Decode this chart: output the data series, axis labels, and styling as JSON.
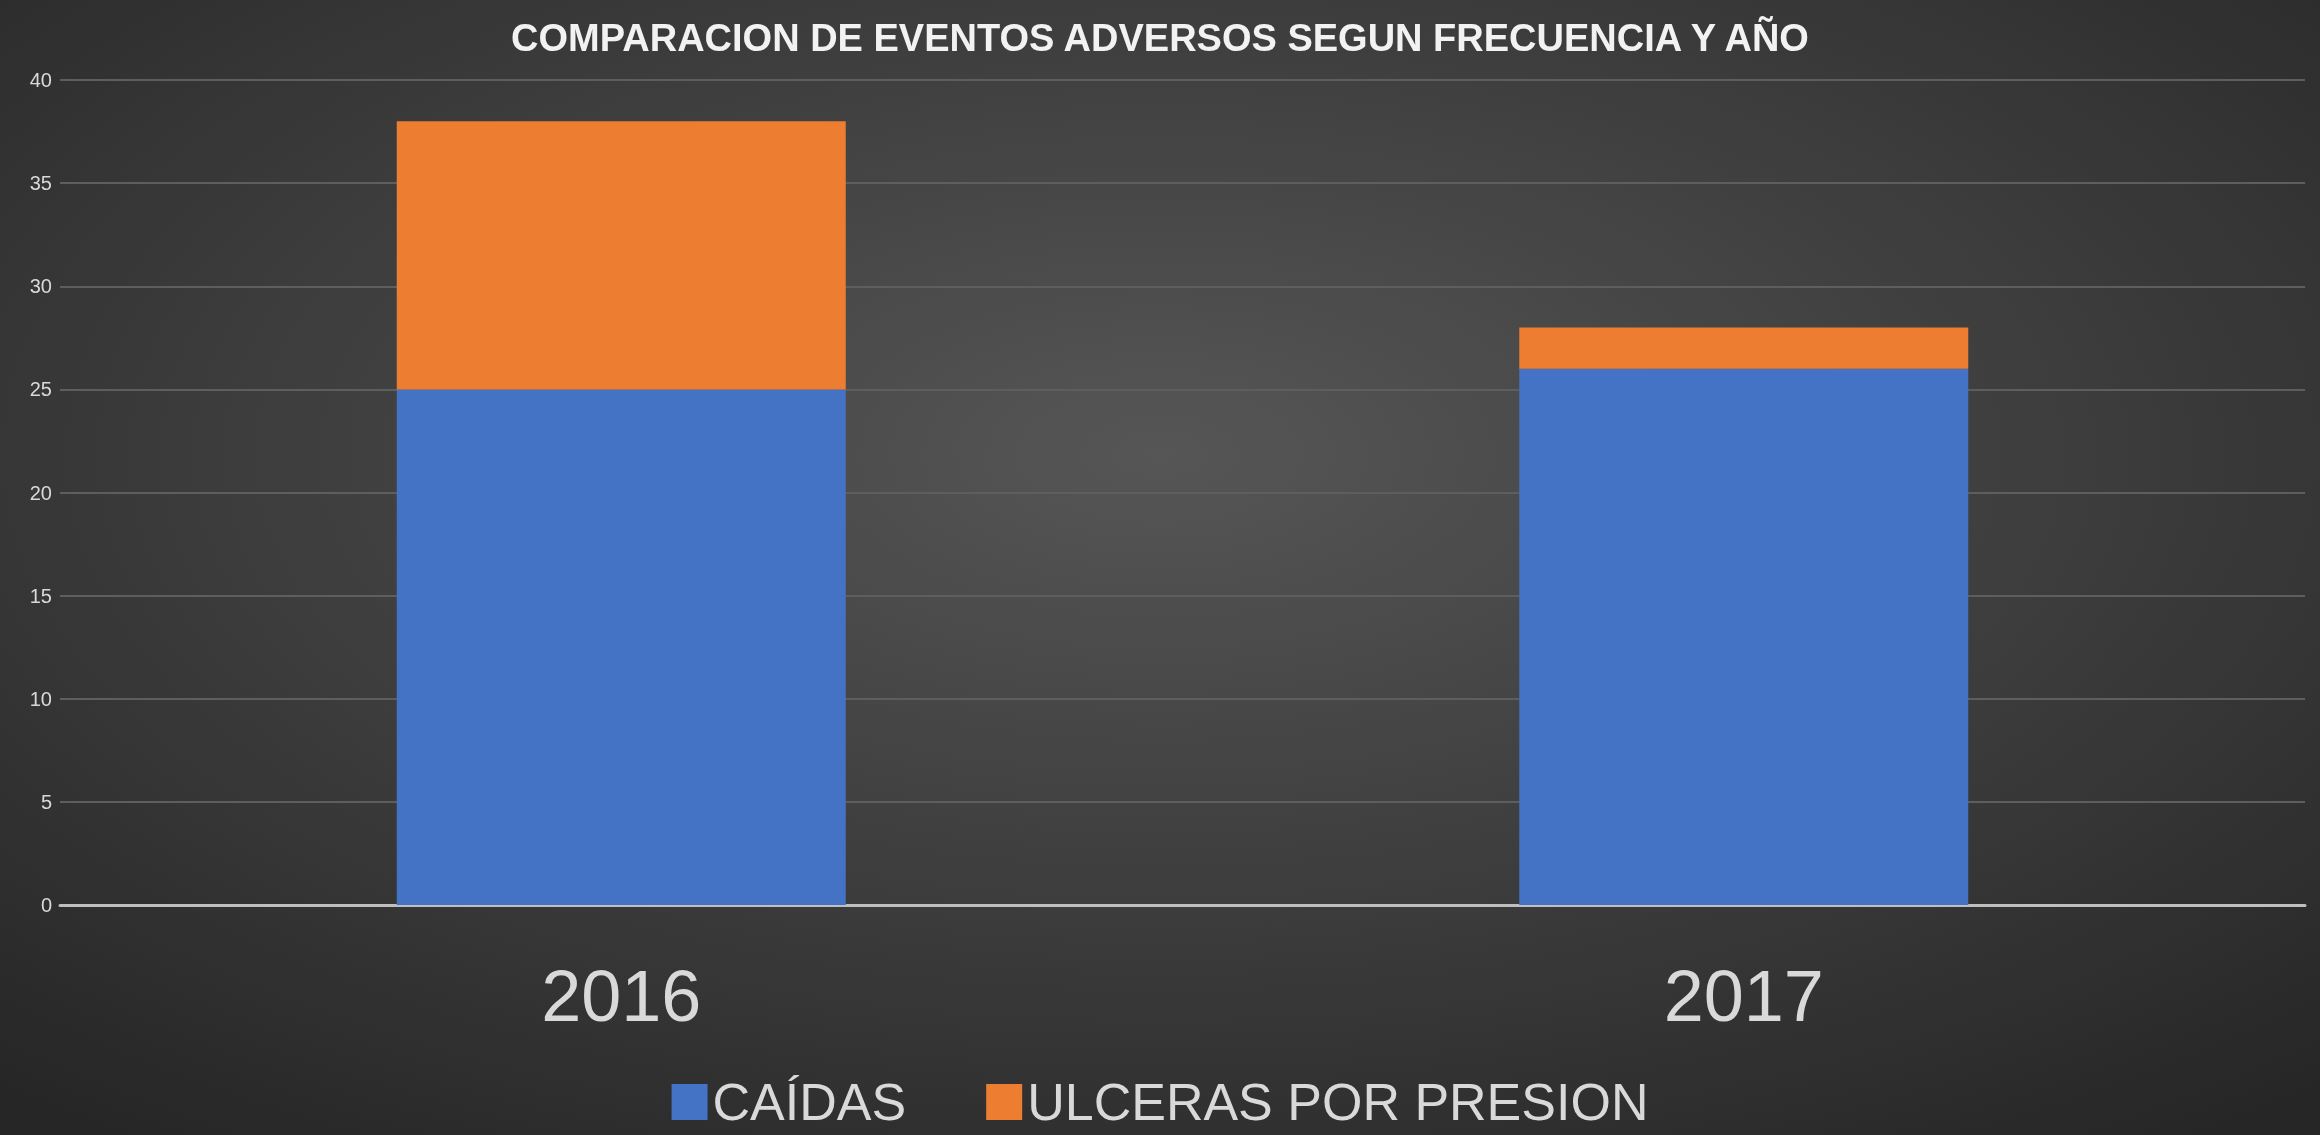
{
  "chart_data": {
    "type": "bar",
    "title": "COMPARACION DE EVENTOS ADVERSOS SEGUN FRECUENCIA Y AÑO",
    "categories": [
      "2016",
      "2017"
    ],
    "series": [
      {
        "name": "CAÍDAS",
        "color": "#4472c4",
        "values": [
          25,
          26
        ]
      },
      {
        "name": "ULCERAS POR PRESION",
        "color": "#ed7d31",
        "values": [
          13,
          2
        ]
      }
    ],
    "stacked": true,
    "ylim": [
      0,
      40
    ],
    "yticks": [
      0,
      5,
      10,
      15,
      20,
      25,
      30,
      35,
      40
    ],
    "grid": "y",
    "legend": "bottom"
  }
}
